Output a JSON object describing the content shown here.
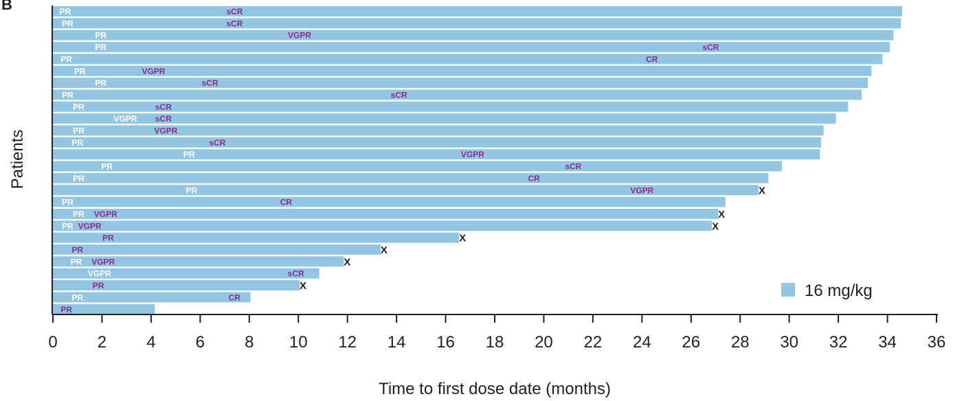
{
  "chart_data": {
    "type": "bar",
    "orientation": "horizontal",
    "title": "",
    "panel_label": "B",
    "xlabel": "Time to first dose date (months)",
    "ylabel": "Patients",
    "xlim": [
      0,
      36
    ],
    "xticks": [
      0,
      2,
      4,
      6,
      8,
      10,
      12,
      14,
      16,
      18,
      20,
      22,
      24,
      26,
      28,
      30,
      32,
      34,
      36
    ],
    "grid": false,
    "legend": {
      "position": "bottom-right",
      "entries": [
        {
          "name": "16 mg/kg",
          "color": "#92c6e3"
        }
      ]
    },
    "colors": {
      "bar": "#92c6e3",
      "early_response_label": "#ffffff",
      "deep_response_label": "#8b2c8f",
      "discontinued_marker": "#231f20"
    },
    "marker_legend": {
      "X": "discontinued"
    },
    "patients": [
      {
        "duration": 34.6,
        "responses": [
          {
            "t": 0.5,
            "label": "PR",
            "tone": "white"
          },
          {
            "t": 7.4,
            "label": "sCR",
            "tone": "purple"
          }
        ],
        "x_marker": false
      },
      {
        "duration": 34.55,
        "responses": [
          {
            "t": 0.6,
            "label": "PR",
            "tone": "white"
          },
          {
            "t": 7.4,
            "label": "sCR",
            "tone": "purple"
          }
        ],
        "x_marker": false
      },
      {
        "duration": 34.25,
        "responses": [
          {
            "t": 1.95,
            "label": "PR",
            "tone": "white"
          },
          {
            "t": 10.05,
            "label": "VGPR",
            "tone": "purple"
          }
        ],
        "x_marker": false
      },
      {
        "duration": 34.1,
        "responses": [
          {
            "t": 1.95,
            "label": "PR",
            "tone": "white"
          },
          {
            "t": 26.8,
            "label": "sCR",
            "tone": "purple"
          }
        ],
        "x_marker": false
      },
      {
        "duration": 33.8,
        "responses": [
          {
            "t": 0.55,
            "label": "PR",
            "tone": "white"
          },
          {
            "t": 24.4,
            "label": "CR",
            "tone": "purple"
          }
        ],
        "x_marker": false
      },
      {
        "duration": 33.35,
        "responses": [
          {
            "t": 1.1,
            "label": "PR",
            "tone": "white"
          },
          {
            "t": 4.1,
            "label": "VGPR",
            "tone": "purple"
          }
        ],
        "x_marker": false
      },
      {
        "duration": 33.2,
        "responses": [
          {
            "t": 1.95,
            "label": "PR",
            "tone": "white"
          },
          {
            "t": 6.4,
            "label": "sCR",
            "tone": "purple"
          }
        ],
        "x_marker": false
      },
      {
        "duration": 32.95,
        "responses": [
          {
            "t": 0.6,
            "label": "PR",
            "tone": "white"
          },
          {
            "t": 14.1,
            "label": "sCR",
            "tone": "purple"
          }
        ],
        "x_marker": false
      },
      {
        "duration": 32.4,
        "responses": [
          {
            "t": 1.05,
            "label": "PR",
            "tone": "white"
          },
          {
            "t": 4.5,
            "label": "sCR",
            "tone": "purple"
          }
        ],
        "x_marker": false
      },
      {
        "duration": 31.9,
        "responses": [
          {
            "t": 2.95,
            "label": "VGPR",
            "tone": "white"
          },
          {
            "t": 4.5,
            "label": "sCR",
            "tone": "purple"
          }
        ],
        "x_marker": false
      },
      {
        "duration": 31.4,
        "responses": [
          {
            "t": 1.05,
            "label": "PR",
            "tone": "white"
          },
          {
            "t": 4.6,
            "label": "VGPR",
            "tone": "purple"
          }
        ],
        "x_marker": false
      },
      {
        "duration": 31.3,
        "responses": [
          {
            "t": 1.0,
            "label": "PR",
            "tone": "white"
          },
          {
            "t": 6.7,
            "label": "sCR",
            "tone": "purple"
          }
        ],
        "x_marker": false
      },
      {
        "duration": 31.25,
        "responses": [
          {
            "t": 5.55,
            "label": "PR",
            "tone": "white"
          },
          {
            "t": 17.1,
            "label": "VGPR",
            "tone": "purple"
          }
        ],
        "x_marker": false
      },
      {
        "duration": 29.7,
        "responses": [
          {
            "t": 2.2,
            "label": "PR",
            "tone": "white"
          },
          {
            "t": 21.2,
            "label": "sCR",
            "tone": "purple"
          }
        ],
        "x_marker": false
      },
      {
        "duration": 29.15,
        "responses": [
          {
            "t": 1.05,
            "label": "PR",
            "tone": "white"
          },
          {
            "t": 19.6,
            "label": "CR",
            "tone": "purple"
          }
        ],
        "x_marker": false
      },
      {
        "duration": 28.75,
        "responses": [
          {
            "t": 5.65,
            "label": "PR",
            "tone": "white"
          },
          {
            "t": 24.0,
            "label": "VGPR",
            "tone": "purple"
          }
        ],
        "x_marker": true
      },
      {
        "duration": 27.4,
        "responses": [
          {
            "t": 0.6,
            "label": "PR",
            "tone": "white"
          },
          {
            "t": 9.5,
            "label": "CR",
            "tone": "purple"
          }
        ],
        "x_marker": false
      },
      {
        "duration": 27.1,
        "responses": [
          {
            "t": 1.05,
            "label": "PR",
            "tone": "white"
          },
          {
            "t": 2.15,
            "label": "VGPR",
            "tone": "purple"
          }
        ],
        "x_marker": true
      },
      {
        "duration": 26.85,
        "responses": [
          {
            "t": 0.6,
            "label": "PR",
            "tone": "white"
          },
          {
            "t": 1.5,
            "label": "VGPR",
            "tone": "purple"
          }
        ],
        "x_marker": true
      },
      {
        "duration": 16.55,
        "responses": [
          {
            "t": 2.25,
            "label": "PR",
            "tone": "purple"
          }
        ],
        "x_marker": true
      },
      {
        "duration": 13.35,
        "responses": [
          {
            "t": 1.0,
            "label": "PR",
            "tone": "purple"
          }
        ],
        "x_marker": true
      },
      {
        "duration": 11.85,
        "responses": [
          {
            "t": 0.95,
            "label": "PR",
            "tone": "white"
          },
          {
            "t": 2.05,
            "label": "VGPR",
            "tone": "purple"
          }
        ],
        "x_marker": true
      },
      {
        "duration": 10.85,
        "responses": [
          {
            "t": 1.9,
            "label": "VGPR",
            "tone": "white"
          },
          {
            "t": 9.9,
            "label": "sCR",
            "tone": "purple"
          }
        ],
        "x_marker": false
      },
      {
        "duration": 10.05,
        "responses": [
          {
            "t": 1.85,
            "label": "PR",
            "tone": "purple"
          }
        ],
        "x_marker": true
      },
      {
        "duration": 8.05,
        "responses": [
          {
            "t": 1.0,
            "label": "PR",
            "tone": "white"
          },
          {
            "t": 7.4,
            "label": "CR",
            "tone": "purple"
          }
        ],
        "x_marker": false
      },
      {
        "duration": 4.15,
        "responses": [
          {
            "t": 0.55,
            "label": "PR",
            "tone": "purple"
          }
        ],
        "x_marker": false
      }
    ]
  }
}
